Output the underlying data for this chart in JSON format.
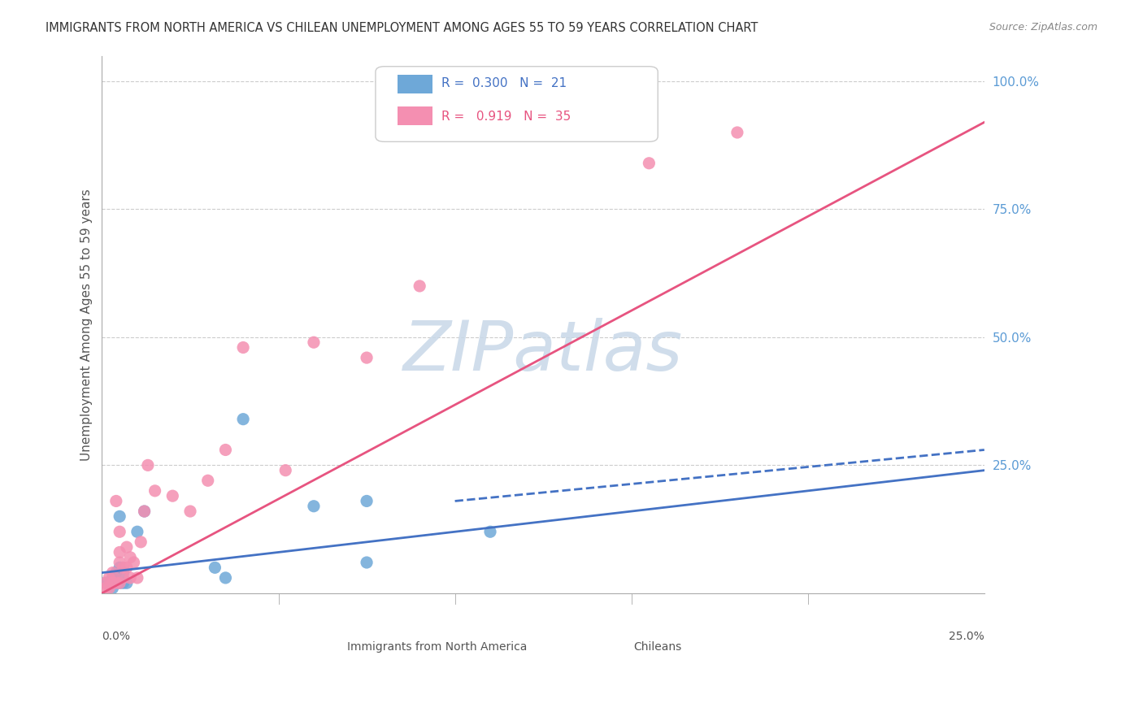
{
  "title": "IMMIGRANTS FROM NORTH AMERICA VS CHILEAN UNEMPLOYMENT AMONG AGES 55 TO 59 YEARS CORRELATION CHART",
  "source": "Source: ZipAtlas.com",
  "ylabel": "Unemployment Among Ages 55 to 59 years",
  "xlabel_bottom_left": "0.0%",
  "xlabel_bottom_right": "25.0%",
  "right_ytick_labels": [
    "100.0%",
    "75.0%",
    "50.0%",
    "25.0%"
  ],
  "right_ytick_values": [
    1.0,
    0.75,
    0.5,
    0.25
  ],
  "watermark": "ZIPatlas",
  "legend_blue_r": "0.300",
  "legend_blue_n": "21",
  "legend_pink_r": "0.919",
  "legend_pink_n": "35",
  "blue_color": "#6ea8d8",
  "pink_color": "#f48fb1",
  "blue_line_color": "#4472c4",
  "pink_line_color": "#e75480",
  "title_color": "#333333",
  "right_axis_color": "#5b9bd5",
  "watermark_color": "#c8d8e8",
  "xlim": [
    0.0,
    0.25
  ],
  "ylim": [
    0.0,
    1.05
  ],
  "blue_scatter_x": [
    0.001,
    0.002,
    0.003,
    0.003,
    0.004,
    0.004,
    0.005,
    0.005,
    0.005,
    0.006,
    0.006,
    0.007,
    0.01,
    0.012,
    0.032,
    0.035,
    0.04,
    0.06,
    0.075,
    0.075,
    0.11
  ],
  "blue_scatter_y": [
    0.02,
    0.02,
    0.01,
    0.03,
    0.02,
    0.04,
    0.02,
    0.05,
    0.15,
    0.02,
    0.04,
    0.02,
    0.12,
    0.16,
    0.05,
    0.03,
    0.34,
    0.17,
    0.18,
    0.06,
    0.12
  ],
  "pink_scatter_x": [
    0.001,
    0.001,
    0.002,
    0.002,
    0.003,
    0.003,
    0.004,
    0.004,
    0.005,
    0.005,
    0.005,
    0.005,
    0.006,
    0.006,
    0.007,
    0.007,
    0.008,
    0.008,
    0.009,
    0.01,
    0.011,
    0.012,
    0.013,
    0.015,
    0.02,
    0.025,
    0.03,
    0.035,
    0.04,
    0.052,
    0.06,
    0.075,
    0.09,
    0.155,
    0.18
  ],
  "pink_scatter_y": [
    0.01,
    0.02,
    0.01,
    0.03,
    0.02,
    0.04,
    0.02,
    0.18,
    0.02,
    0.06,
    0.08,
    0.12,
    0.03,
    0.05,
    0.05,
    0.09,
    0.03,
    0.07,
    0.06,
    0.03,
    0.1,
    0.16,
    0.25,
    0.2,
    0.19,
    0.16,
    0.22,
    0.28,
    0.48,
    0.24,
    0.49,
    0.46,
    0.6,
    0.84,
    0.9
  ],
  "blue_trend_x0": 0.0,
  "blue_trend_y0": 0.04,
  "blue_trend_x1": 0.25,
  "blue_trend_y1": 0.24,
  "pink_trend_x0": 0.0,
  "pink_trend_y0": 0.0,
  "pink_trend_x1": 0.25,
  "pink_trend_y1": 0.92,
  "dashed_trend_x0": 0.1,
  "dashed_trend_y0": 0.18,
  "dashed_trend_x1": 0.25,
  "dashed_trend_y1": 0.28
}
